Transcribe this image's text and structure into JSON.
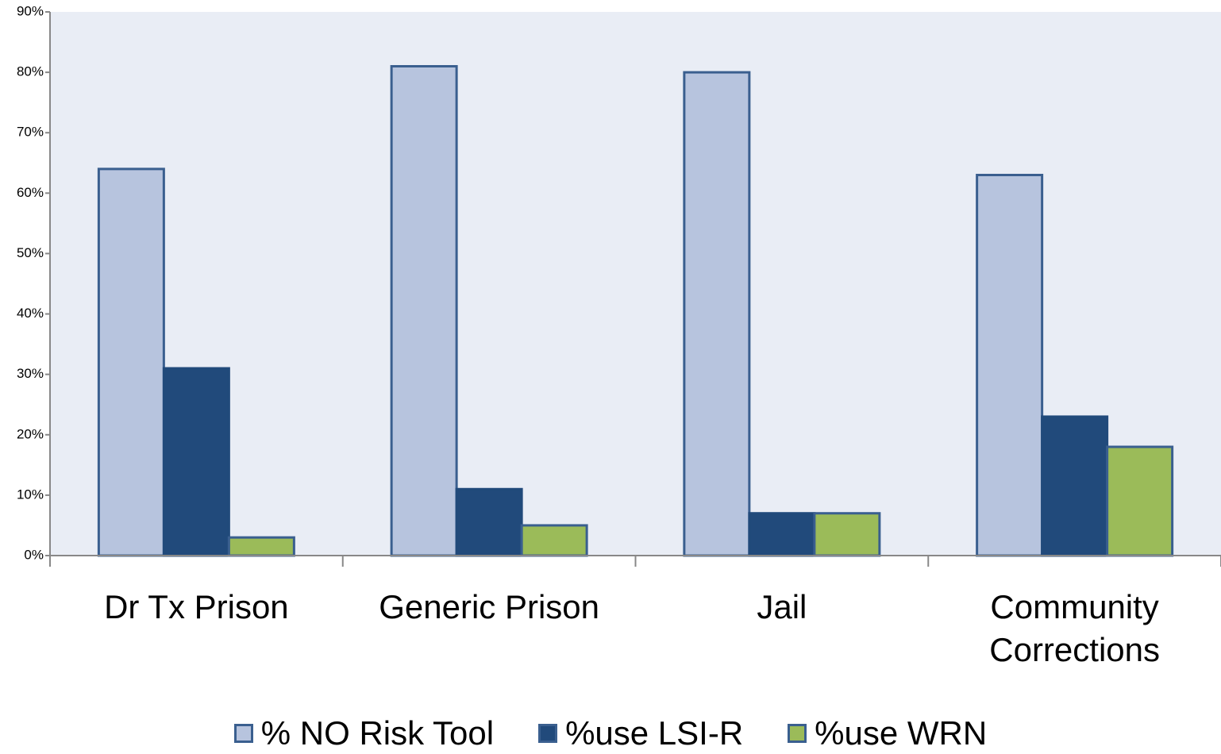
{
  "chart_data": {
    "type": "bar",
    "categories": [
      "Dr Tx Prison",
      "Generic Prison",
      "Jail",
      "Community Corrections"
    ],
    "series": [
      {
        "name": "% NO Risk Tool",
        "color": "#b7c4de",
        "values": [
          64,
          81,
          80,
          63
        ]
      },
      {
        "name": "%use LSI-R",
        "color": "#214a7b",
        "values": [
          31,
          11,
          7,
          23
        ]
      },
      {
        "name": "%use WRN",
        "color": "#9bbb59",
        "values": [
          3,
          5,
          7,
          18
        ]
      }
    ],
    "ylim": [
      0,
      90
    ],
    "yticks": [
      {
        "value": 0,
        "label": "0%"
      },
      {
        "value": 10,
        "label": "10%"
      },
      {
        "value": 20,
        "label": "20%"
      },
      {
        "value": 30,
        "label": "30%"
      },
      {
        "value": 40,
        "label": "40%"
      },
      {
        "value": 50,
        "label": "50%"
      },
      {
        "value": 60,
        "label": "60%"
      },
      {
        "value": 70,
        "label": "70%"
      },
      {
        "value": 80,
        "label": "80%"
      },
      {
        "value": 90,
        "label": "90%"
      }
    ],
    "legend": "bottom"
  }
}
